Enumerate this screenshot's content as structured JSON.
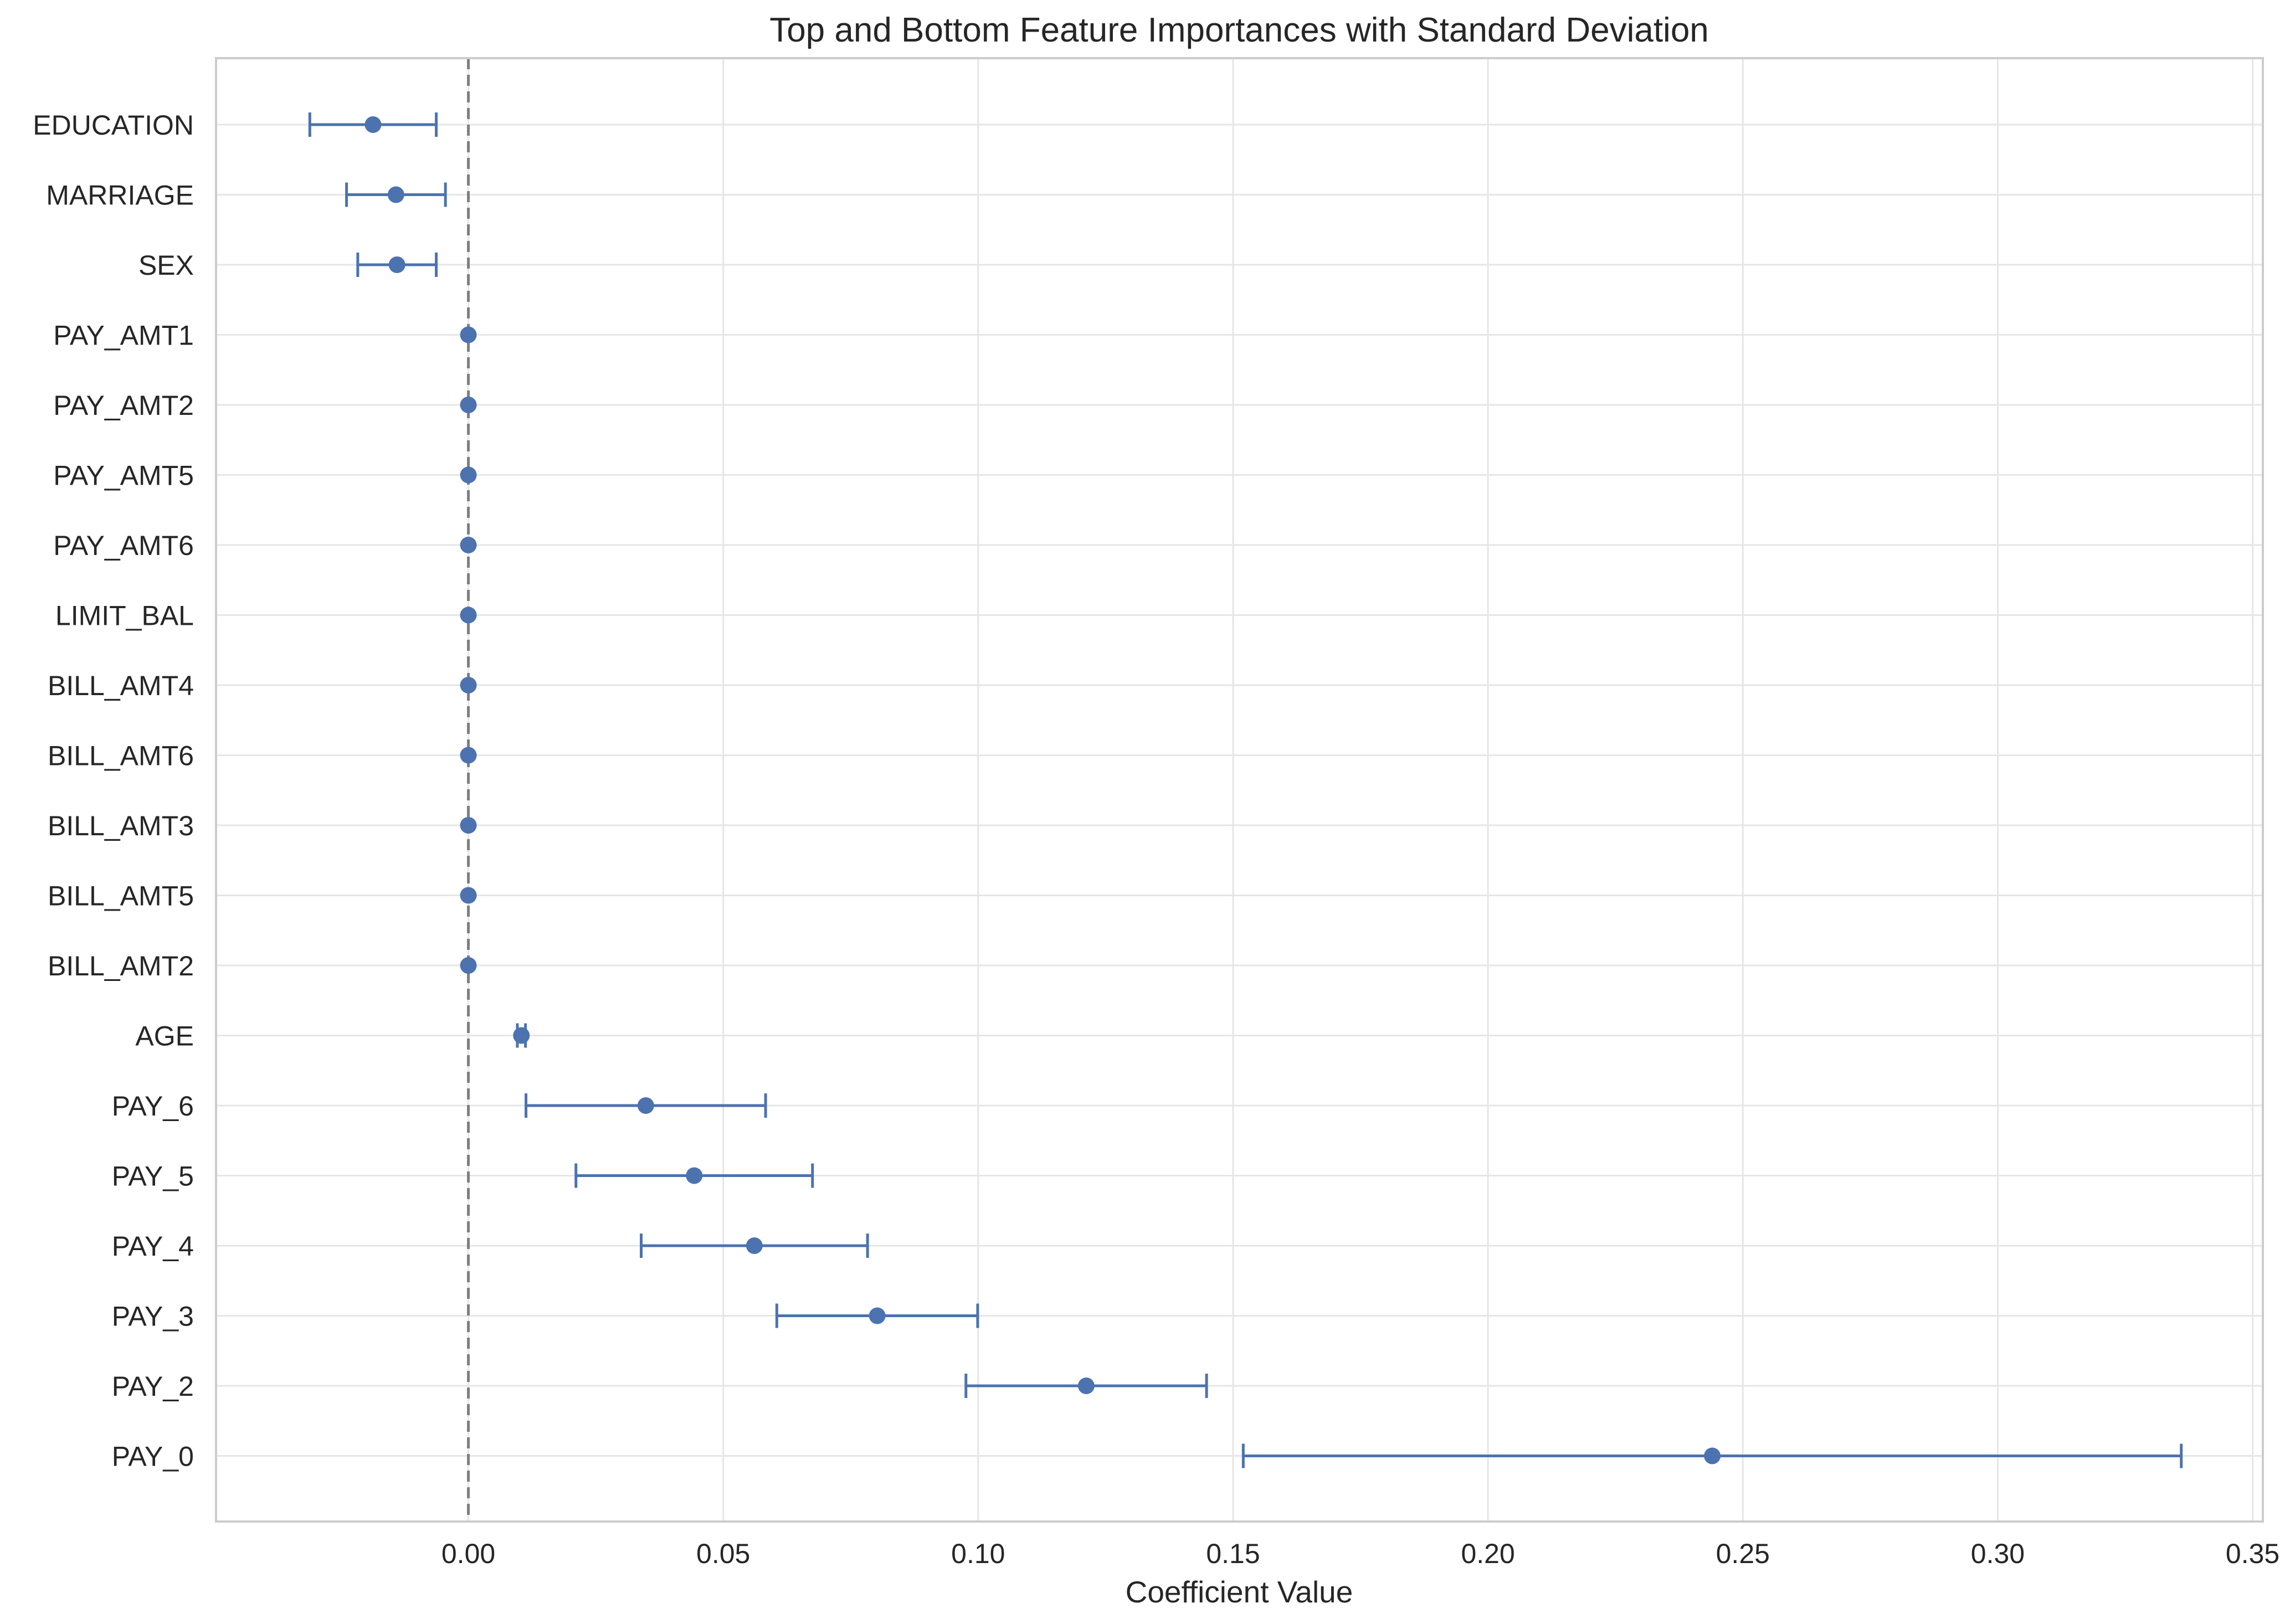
{
  "chart_data": {
    "type": "scatter",
    "title": "Top and Bottom Feature Importances with Standard Deviation",
    "xlabel": "Coefficient Value",
    "ylabel": "",
    "xlim": [
      -0.0495,
      0.352
    ],
    "x_ticks": [
      0.0,
      0.05,
      0.1,
      0.15,
      0.2,
      0.25,
      0.3,
      0.35
    ],
    "x_tick_labels": [
      "0.00",
      "0.05",
      "0.10",
      "0.15",
      "0.20",
      "0.25",
      "0.30",
      "0.35"
    ],
    "grid": true,
    "reference_line": {
      "x": 0.0,
      "style": "dashed",
      "color": "#7f7f7f"
    },
    "colors": {
      "series": "#4c72b0",
      "grid": "#e6e6e6",
      "spine": "#cccccc"
    },
    "features": [
      "EDUCATION",
      "MARRIAGE",
      "SEX",
      "PAY_AMT1",
      "PAY_AMT2",
      "PAY_AMT5",
      "PAY_AMT6",
      "LIMIT_BAL",
      "BILL_AMT4",
      "BILL_AMT6",
      "BILL_AMT3",
      "BILL_AMT5",
      "BILL_AMT2",
      "AGE",
      "PAY_6",
      "PAY_5",
      "PAY_4",
      "PAY_3",
      "PAY_2",
      "PAY_0"
    ],
    "values": [
      -0.0187,
      -0.0142,
      -0.014,
      0.0,
      0.0,
      0.0,
      0.0,
      0.0,
      0.0,
      0.0,
      0.0,
      0.0,
      0.0,
      0.0104,
      0.0348,
      0.0443,
      0.0561,
      0.0802,
      0.1212,
      0.244
    ],
    "std": [
      0.0124,
      0.0097,
      0.0077,
      0.0,
      0.0,
      0.0,
      0.0,
      0.0,
      0.0,
      0.0,
      0.0,
      0.0,
      0.0,
      0.0008,
      0.0235,
      0.0232,
      0.0222,
      0.0197,
      0.0236,
      0.092
    ]
  }
}
